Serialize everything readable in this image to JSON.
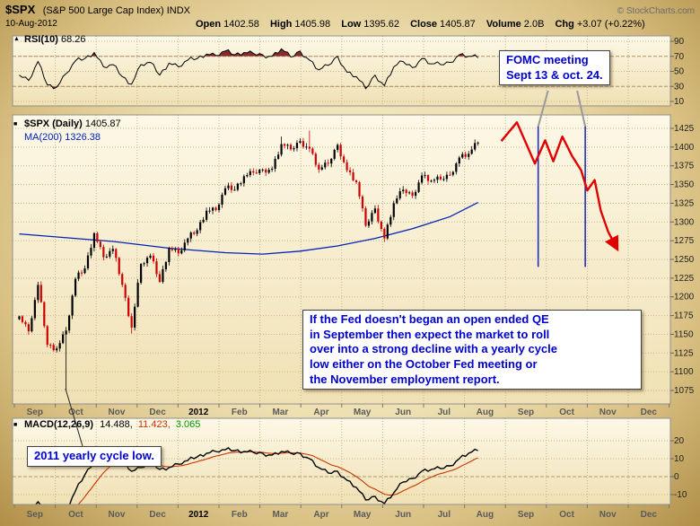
{
  "header": {
    "symbol": "$SPX",
    "name": "(S&P 500 Large Cap Index) INDX",
    "date": "10-Aug-2012",
    "copyright": "© StockCharts.com",
    "quote": {
      "open_label": "Open",
      "open": "1402.58",
      "high_label": "High",
      "high": "1405.98",
      "low_label": "Low",
      "low": "1395.62",
      "close_label": "Close",
      "close": "1405.87",
      "volume_label": "Volume",
      "volume": "2.0B",
      "chg_label": "Chg",
      "chg": "+3.07 (+0.22%)"
    }
  },
  "icons": {
    "rsi_panel": "▲",
    "price_panel": "■",
    "macd_panel": "■"
  },
  "panels": {
    "rsi": {
      "label": "RSI(10)",
      "value": "68.26"
    },
    "price": {
      "label": "$SPX (Daily)",
      "value": "1405.87",
      "ma_label": "MA(200)",
      "ma_value": "1326.38"
    },
    "macd": {
      "label": "MACD(12,26,9)",
      "value1": "14.488,",
      "value2": "11.423,",
      "value3": "3.065"
    }
  },
  "annotations": {
    "fomc": {
      "text": "FOMC meeting\nSept 13 & oct. 24."
    },
    "qe": {
      "text": "If the Fed doesn't began an open ended QE\nin September then expect the market to roll\nover into a strong decline with a yearly cycle\nlow either on the October Fed meeting or\nthe November employment report."
    },
    "cycle_low": {
      "text": "2011 yearly cycle low."
    }
  },
  "chart_data": {
    "type": "candlestick",
    "title": "$SPX Daily with RSI(10), MA(200) and MACD(12,26,9)",
    "x_axis": {
      "labels": [
        "Sep",
        "Oct",
        "Nov",
        "Dec",
        "2012",
        "Feb",
        "Mar",
        "Apr",
        "May",
        "Jun",
        "Jul",
        "Aug",
        "Sep",
        "Oct",
        "Nov",
        "Dec"
      ],
      "bold_index": 4
    },
    "price_axis": {
      "min": 1075,
      "max": 1425,
      "step": 25,
      "ticks": [
        1425,
        1400,
        1375,
        1350,
        1325,
        1300,
        1275,
        1250,
        1225,
        1200,
        1175,
        1150,
        1125,
        1100,
        1075
      ]
    },
    "rsi_axis": {
      "ticks": [
        90,
        70,
        50,
        30,
        10
      ],
      "overbought": 70,
      "oversold": 30
    },
    "macd_axis": {
      "ticks": [
        20,
        10,
        0,
        -10
      ]
    },
    "weekly_closes": [
      1174,
      1154,
      1216,
      1136,
      1131,
      1155,
      1224,
      1238,
      1285,
      1253,
      1264,
      1216,
      1159,
      1244,
      1255,
      1220,
      1265,
      1258,
      1278,
      1289,
      1315,
      1316,
      1345,
      1343,
      1361,
      1366,
      1370,
      1371,
      1404,
      1397,
      1408,
      1398,
      1370,
      1378,
      1403,
      1369,
      1353,
      1295,
      1318,
      1278,
      1325,
      1343,
      1335,
      1362,
      1355,
      1357,
      1363,
      1386,
      1391,
      1406
    ],
    "low_overrides": {
      "5": 1075,
      "12": 1151
    },
    "high_overrides": {
      "28": 1414,
      "31": 1422
    },
    "ma200_anchors": [
      [
        0,
        1284
      ],
      [
        10,
        1274
      ],
      [
        16,
        1265
      ],
      [
        22,
        1259
      ],
      [
        26,
        1257
      ],
      [
        30,
        1261
      ],
      [
        34,
        1268
      ],
      [
        38,
        1278
      ],
      [
        42,
        1291
      ],
      [
        46,
        1307
      ],
      [
        49,
        1326
      ]
    ],
    "rsi_weekly": [
      45,
      38,
      63,
      32,
      29,
      47,
      64,
      67,
      75,
      56,
      59,
      43,
      33,
      59,
      62,
      45,
      61,
      56,
      65,
      67,
      73,
      71,
      77,
      72,
      75,
      74,
      72,
      70,
      80,
      69,
      77,
      65,
      52,
      58,
      70,
      49,
      43,
      27,
      45,
      31,
      56,
      63,
      55,
      67,
      60,
      59,
      62,
      72,
      70,
      68
    ],
    "macd_weekly": [
      -17,
      -21,
      -14,
      -23,
      -26,
      -19,
      -8,
      1,
      9,
      14,
      15,
      10,
      3,
      5,
      8,
      4,
      5,
      7,
      9,
      11,
      13,
      14,
      15,
      14.5,
      14,
      13.5,
      13,
      12,
      14,
      13,
      13,
      10,
      5,
      2,
      3,
      -2,
      -6,
      -13,
      -11,
      -15,
      -9,
      -3,
      -1,
      3,
      4,
      4.5,
      6,
      10,
      13,
      14.5
    ],
    "projection": {
      "color": "#e00000",
      "points": [
        [
          11.9,
          1408
        ],
        [
          12.28,
          1433
        ],
        [
          12.72,
          1378
        ],
        [
          12.97,
          1409
        ],
        [
          13.17,
          1381
        ],
        [
          13.39,
          1414
        ],
        [
          13.63,
          1388
        ],
        [
          13.85,
          1369
        ],
        [
          14.0,
          1342
        ],
        [
          14.18,
          1356
        ],
        [
          14.33,
          1315
        ],
        [
          14.51,
          1287
        ],
        [
          14.73,
          1264
        ]
      ]
    },
    "event_lines": {
      "color": "#1f2fbf",
      "months": [
        12.8,
        13.95
      ],
      "price_top": 1428,
      "price_bottom": 1240
    },
    "cycle_low_pointer": {
      "month": 1.25,
      "price": 1075
    },
    "colors": {
      "up": "#000000",
      "down": "#cc0000",
      "ma": "#0022bb",
      "rsi_line": "#000000",
      "macd_line": "#000000",
      "signal_line": "#cc3300",
      "annotation_text": "#0000cc"
    }
  }
}
